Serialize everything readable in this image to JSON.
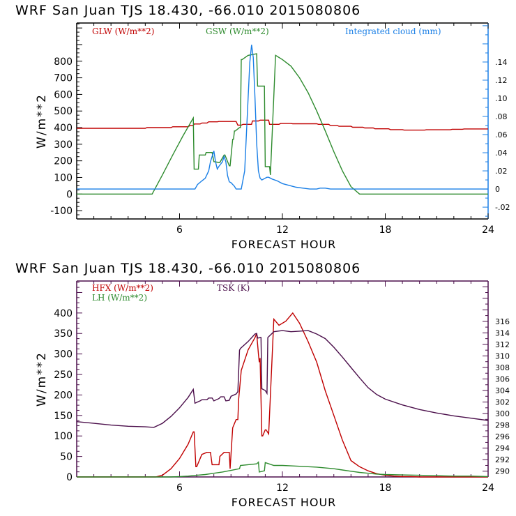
{
  "chart_data": [
    {
      "type": "line",
      "title": "WRF  San Juan TJS  18.430, -66.010  2015080806",
      "xlabel": "FORECAST HOUR",
      "ylabel": "W/m**2",
      "y2label": "Integrated cloud (mm)",
      "xlim": [
        0,
        24
      ],
      "ylim": [
        -150,
        1030
      ],
      "y2lim": [
        -0.033,
        0.183
      ],
      "x_ticks": [
        6,
        12,
        18,
        24
      ],
      "y_ticks": [
        -100,
        0,
        100,
        200,
        300,
        400,
        500,
        600,
        700,
        800
      ],
      "y_tick_labels": [
        "-100",
        "0",
        "100",
        "200",
        "300",
        "400",
        "500",
        "600",
        "700",
        "800"
      ],
      "y2_ticks": [
        -0.02,
        0,
        0.02,
        0.04,
        0.06,
        0.08,
        0.1,
        0.12,
        0.14
      ],
      "y2_tick_labels": [
        "-.02",
        "0",
        ".02",
        ".04",
        ".06",
        ".08",
        ".10",
        ".12",
        ".14"
      ],
      "frame_color": "#000000",
      "right_axis_color": "#1a7fe6",
      "legend": [
        {
          "name": "GLW (W/m**2)",
          "color": "#c00000",
          "position": "top-left"
        },
        {
          "name": "GSW (W/m**2)",
          "color": "#2e8b2e",
          "position": "top-center"
        },
        {
          "name": "Integrated cloud (mm)",
          "color": "#1a7fe6",
          "position": "top-right"
        }
      ],
      "series": [
        {
          "name": "GLW (W/m**2)",
          "axis": "left",
          "color": "#c00000",
          "x": [
            0,
            4,
            4.1,
            5.5,
            5.6,
            6.5,
            6.6,
            6.8,
            6.85,
            7.2,
            7.3,
            7.6,
            7.7,
            8.2,
            8.3,
            9.3,
            9.4,
            9.6,
            9.7,
            10.2,
            10.25,
            10.6,
            10.7,
            11.2,
            11.25,
            11.8,
            11.9,
            12.5,
            12.6,
            14.0,
            14.1,
            14.7,
            14.8,
            15.2,
            15.3,
            16.0,
            16.1,
            16.7,
            16.8,
            17.3,
            17.4,
            18.2,
            18.3,
            19.0,
            19.1,
            20.3,
            20.4,
            21.8,
            21.9,
            22.5,
            22.6,
            24
          ],
          "y": [
            396,
            396,
            400,
            400,
            405,
            405,
            412,
            412,
            422,
            422,
            428,
            428,
            435,
            435,
            437,
            437,
            415,
            415,
            420,
            420,
            440,
            440,
            445,
            445,
            420,
            420,
            425,
            425,
            423,
            423,
            420,
            420,
            413,
            413,
            408,
            408,
            402,
            402,
            398,
            398,
            393,
            393,
            388,
            388,
            385,
            385,
            387,
            387,
            390,
            390,
            392,
            392
          ]
        },
        {
          "name": "GSW (W/m**2)",
          "axis": "left",
          "color": "#2e8b2e",
          "x": [
            0,
            4.4,
            5.0,
            5.6,
            6.2,
            6.8,
            6.85,
            7.1,
            7.15,
            7.5,
            7.55,
            7.9,
            8.0,
            8.3,
            8.35,
            8.6,
            8.65,
            8.9,
            8.95,
            9.1,
            9.15,
            9.2,
            9.25,
            9.5,
            9.55,
            9.6,
            9.65,
            10.0,
            10.5,
            10.55,
            10.95,
            11.0,
            11.25,
            11.3,
            11.6,
            12.0,
            12.5,
            13.0,
            13.5,
            14.0,
            14.5,
            15.0,
            15.5,
            16.0,
            16.5,
            17.0,
            24
          ],
          "y": [
            0,
            0,
            115,
            235,
            350,
            458,
            150,
            150,
            235,
            235,
            250,
            250,
            195,
            190,
            190,
            235,
            235,
            170,
            170,
            330,
            330,
            380,
            380,
            400,
            400,
            810,
            810,
            835,
            845,
            650,
            650,
            165,
            165,
            115,
            835,
            810,
            770,
            700,
            610,
            500,
            380,
            255,
            140,
            45,
            0,
            0,
            0
          ]
        },
        {
          "name": "Integrated cloud (mm)",
          "axis": "right",
          "color": "#1a7fe6",
          "x": [
            0,
            6.9,
            7.05,
            7.3,
            7.5,
            7.7,
            7.8,
            8.0,
            8.1,
            8.2,
            8.3,
            8.5,
            8.6,
            8.7,
            8.8,
            8.9,
            9.0,
            9.2,
            9.3,
            9.5,
            9.6,
            9.8,
            10.0,
            10.1,
            10.2,
            10.3,
            10.4,
            10.5,
            10.6,
            10.7,
            10.8,
            10.9,
            11.0,
            11.1,
            11.2,
            11.4,
            11.7,
            12.0,
            12.4,
            12.8,
            13.2,
            13.6,
            14.0,
            14.2,
            14.5,
            14.8,
            15.0,
            24
          ],
          "y": [
            0,
            0,
            0.005,
            0.009,
            0.012,
            0.02,
            0.03,
            0.042,
            0.03,
            0.022,
            0.025,
            0.03,
            0.036,
            0.03,
            0.015,
            0.008,
            0.007,
            0.003,
            0,
            0,
            0,
            0.02,
            0.1,
            0.14,
            0.159,
            0.145,
            0.1,
            0.05,
            0.02,
            0.012,
            0.01,
            0.011,
            0.012,
            0.013,
            0.013,
            0.011,
            0.009,
            0.006,
            0.004,
            0.002,
            0.001,
            0,
            0,
            0.001,
            0.001,
            0,
            0,
            0
          ]
        }
      ]
    },
    {
      "type": "line",
      "title": "WRF  San Juan TJS  18.430, -66.010  2015080806",
      "xlabel": "FORECAST HOUR",
      "ylabel": "W/m**2",
      "y2label": "TSK (K)",
      "xlim": [
        0,
        24
      ],
      "ylim": [
        0,
        478
      ],
      "y2lim": [
        289.0,
        323.0
      ],
      "x_ticks": [
        6,
        12,
        18,
        24
      ],
      "y_ticks": [
        0,
        50,
        100,
        150,
        200,
        250,
        300,
        350,
        400
      ],
      "y_tick_labels": [
        "0",
        "50",
        "100",
        "150",
        "200",
        "250",
        "300",
        "350",
        "400"
      ],
      "y2_ticks": [
        290,
        292,
        294,
        296,
        298,
        300,
        302,
        304,
        306,
        308,
        310,
        312,
        314,
        316
      ],
      "y2_tick_labels": [
        "290",
        "292",
        "294",
        "296",
        "298",
        "300",
        "302",
        "304",
        "306",
        "308",
        "310",
        "312",
        "314",
        "316"
      ],
      "frame_color": "#4b0f4b",
      "right_axis_color": "#4b0f4b",
      "legend": [
        {
          "name": "HFX (W/m**2)",
          "color": "#c00000",
          "position": "top-left"
        },
        {
          "name": "LH  (W/m**2)",
          "color": "#2e8b2e",
          "position": "top-left"
        },
        {
          "name": "TSK (K)",
          "color": "#4b0f4b",
          "position": "top-center"
        }
      ],
      "series": [
        {
          "name": "HFX (W/m**2)",
          "axis": "left",
          "color": "#c00000",
          "x": [
            0,
            4.6,
            5.0,
            5.5,
            6.0,
            6.5,
            6.8,
            6.85,
            6.95,
            7.0,
            7.3,
            7.6,
            7.8,
            7.9,
            8.3,
            8.35,
            8.6,
            8.9,
            8.95,
            9.1,
            9.3,
            9.4,
            9.45,
            9.6,
            10.0,
            10.4,
            10.5,
            10.6,
            10.65,
            10.7,
            10.8,
            10.85,
            11.0,
            11.05,
            11.2,
            11.5,
            11.8,
            12.2,
            12.6,
            13.0,
            13.5,
            14.0,
            14.5,
            15.0,
            15.5,
            16.0,
            16.5,
            17.0,
            17.5,
            18.0,
            18.5,
            19.0,
            19.5,
            20.0,
            21.0,
            22.0,
            23.0,
            24
          ],
          "y": [
            0,
            0,
            4,
            20,
            45,
            80,
            110,
            110,
            25,
            25,
            55,
            60,
            60,
            30,
            30,
            50,
            60,
            60,
            20,
            120,
            140,
            140,
            190,
            260,
            310,
            340,
            350,
            300,
            280,
            290,
            100,
            100,
            115,
            115,
            105,
            385,
            370,
            380,
            400,
            375,
            330,
            280,
            210,
            150,
            90,
            40,
            25,
            15,
            8,
            4,
            2,
            1,
            1,
            0,
            0,
            0,
            0,
            0
          ]
        },
        {
          "name": "LH  (W/m**2)",
          "axis": "left",
          "color": "#2e8b2e",
          "x": [
            0,
            5.5,
            6.0,
            6.5,
            7.0,
            7.5,
            8.0,
            8.5,
            9.0,
            9.5,
            9.55,
            10.0,
            10.5,
            10.6,
            10.65,
            10.95,
            11.0,
            11.5,
            12.0,
            12.5,
            13.0,
            13.5,
            14.0,
            14.5,
            15.0,
            15.5,
            16.0,
            16.5,
            17.0,
            17.5,
            18.0,
            19.0,
            20.0,
            21.0,
            22.0,
            23.0,
            24
          ],
          "y": [
            0,
            0,
            1,
            2,
            4,
            6,
            9,
            12,
            16,
            20,
            28,
            30,
            32,
            36,
            12,
            15,
            35,
            28,
            28,
            27,
            26,
            25,
            24,
            22,
            20,
            17,
            14,
            11,
            9,
            7,
            6,
            5,
            4,
            3,
            2,
            2,
            1
          ]
        },
        {
          "name": "TSK (K)",
          "axis": "right",
          "color": "#4b0f4b",
          "x": [
            0,
            1,
            2,
            3,
            4,
            4.5,
            5.0,
            5.5,
            6.0,
            6.5,
            6.8,
            6.9,
            7.2,
            7.3,
            7.6,
            7.7,
            7.9,
            8.0,
            8.3,
            8.4,
            8.6,
            8.7,
            8.9,
            9.0,
            9.3,
            9.4,
            9.5,
            9.55,
            10.0,
            10.4,
            10.5,
            10.55,
            10.75,
            10.8,
            11.0,
            11.1,
            11.15,
            11.5,
            12.0,
            12.5,
            13.0,
            13.5,
            14.0,
            14.5,
            15.0,
            15.5,
            16.0,
            16.5,
            17.0,
            17.5,
            18.0,
            19.0,
            20.0,
            21.0,
            22.0,
            23.0,
            24
          ],
          "y": [
            298.6,
            298.3,
            298.0,
            297.8,
            297.7,
            297.6,
            298.3,
            299.5,
            301.0,
            302.8,
            304.2,
            301.8,
            302.2,
            302.4,
            302.4,
            302.7,
            302.7,
            302.2,
            302.6,
            302.9,
            302.9,
            302.2,
            302.3,
            303.0,
            303.4,
            303.8,
            311.0,
            311.3,
            312.5,
            313.8,
            313.9,
            313.1,
            313.2,
            304.3,
            304.0,
            303.5,
            313.2,
            314.2,
            314.4,
            314.2,
            314.3,
            314.4,
            313.8,
            313.0,
            311.5,
            309.8,
            308.0,
            306.2,
            304.5,
            303.3,
            302.5,
            301.5,
            300.7,
            300.1,
            299.6,
            299.2,
            298.8
          ]
        }
      ]
    }
  ]
}
